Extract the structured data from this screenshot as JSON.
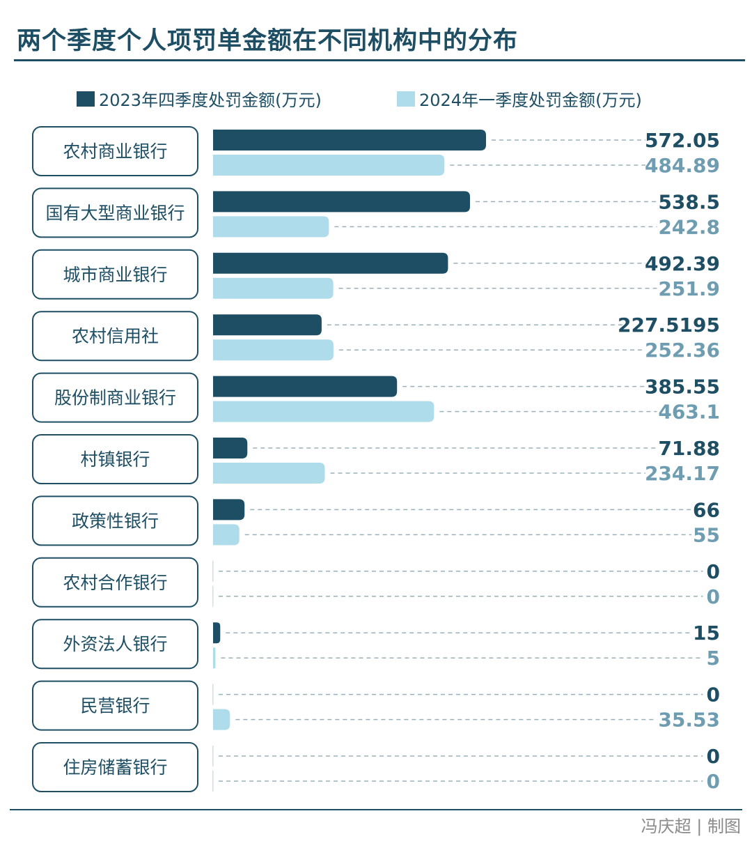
{
  "chart_data": {
    "type": "bar",
    "orientation": "horizontal",
    "title": "两个季度个人项罚单金额在不同机构中的分布",
    "categories": [
      "农村商业银行",
      "国有大型商业银行",
      "城市商业银行",
      "农村信用社",
      "股份制商业银行",
      "村镇银行",
      "政策性银行",
      "农村合作银行",
      "外资法人银行",
      "民营银行",
      "住房储蓄银行"
    ],
    "series": [
      {
        "name": "2023年四季度处罚金额(万元)",
        "color": "#1d4e63",
        "values": [
          572.05,
          538.5,
          492.39,
          227.5195,
          385.55,
          71.88,
          66,
          0,
          15,
          0,
          0
        ],
        "labels": [
          "572.05",
          "538.5",
          "492.39",
          "227.5195",
          "385.55",
          "71.88",
          "66",
          "0",
          "15",
          "0",
          "0"
        ]
      },
      {
        "name": "2024年一季度处罚金额(万元)",
        "color": "#aedceb",
        "label_color": "#6e9db2",
        "values": [
          484.89,
          242.8,
          251.9,
          252.36,
          463.1,
          234.17,
          55,
          0,
          5,
          35.53,
          0
        ],
        "labels": [
          "484.89",
          "242.8",
          "251.9",
          "252.36",
          "463.1",
          "234.17",
          "55",
          "0",
          "5",
          "35.53",
          "0"
        ]
      }
    ],
    "xlim": [
      0,
      572.05
    ],
    "legend_position": "top",
    "grid": false
  },
  "credit": "冯庆超 | 制图"
}
